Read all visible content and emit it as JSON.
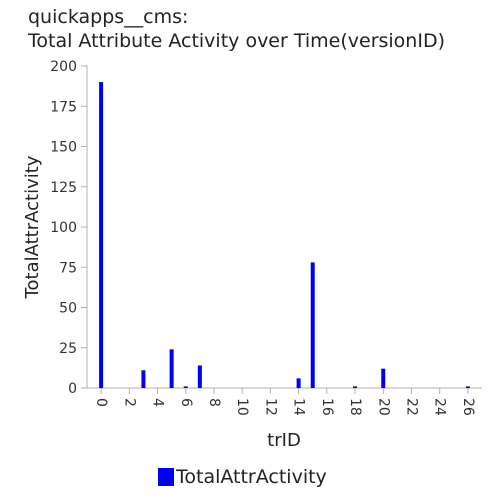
{
  "chart_data": {
    "type": "bar",
    "title_lines": [
      "quickapps__cms:",
      "Total Attribute Activity over Time(versionID)"
    ],
    "xlabel": "trID",
    "ylabel": "TotalAttrActivity",
    "xlim": [
      -1,
      27
    ],
    "ylim": [
      0,
      200
    ],
    "x_ticks": [
      0,
      2,
      4,
      6,
      8,
      10,
      12,
      14,
      16,
      18,
      20,
      22,
      24,
      26
    ],
    "y_ticks": [
      0,
      25,
      50,
      75,
      100,
      125,
      150,
      175,
      200
    ],
    "grid": false,
    "legend_position": "bottom-center",
    "series": [
      {
        "name": "TotalAttrActivity",
        "color": "#0000ee",
        "points": [
          {
            "x": 0,
            "y": 190
          },
          {
            "x": 3,
            "y": 11
          },
          {
            "x": 5,
            "y": 24
          },
          {
            "x": 6,
            "y": 1
          },
          {
            "x": 7,
            "y": 14
          },
          {
            "x": 14,
            "y": 6
          },
          {
            "x": 15,
            "y": 78
          },
          {
            "x": 18,
            "y": 1
          },
          {
            "x": 20,
            "y": 12
          },
          {
            "x": 26,
            "y": 1
          }
        ]
      }
    ]
  }
}
